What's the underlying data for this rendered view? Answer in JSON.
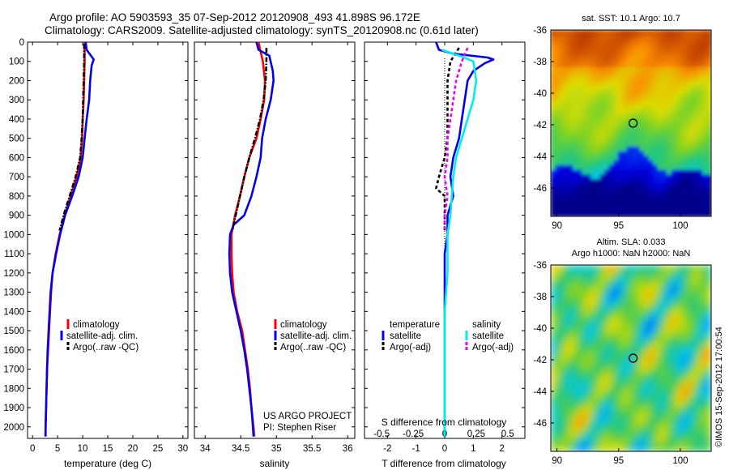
{
  "figure": {
    "title_line1": "Argo profile: AO 5903593_35 07-Sep-2012 20120908_493 41.898S 96.172E",
    "title_line2": "Climatology: CARS2009. Satellite-adjusted climatology: synTS_20120908.nc (0.61d later)",
    "project_line1": "US ARGO PROJECT",
    "project_line2": "PI: Stephen Riser",
    "credit": "©IMOS 15-Sep-2012 17:00:54"
  },
  "colors": {
    "climatology": "#ff0000",
    "satellite": "#0000ee",
    "argo": "#000000",
    "salinity_satellite": "#00eeee",
    "salinity_argo": "#ee00ee"
  },
  "chart_data": [
    {
      "type": "line",
      "panel": "temperature",
      "xlabel": "temperature (deg C)",
      "ylabel": "",
      "xlim": [
        -1,
        31
      ],
      "ylim": [
        2060,
        0
      ],
      "xticks": [
        "0",
        "5",
        "10",
        "15",
        "20",
        "25",
        "30"
      ],
      "yticks": [
        "0",
        "100",
        "200",
        "300",
        "400",
        "500",
        "600",
        "700",
        "800",
        "900",
        "1000",
        "1100",
        "1200",
        "1300",
        "1400",
        "1500",
        "1600",
        "1700",
        "1800",
        "1900",
        "2000"
      ],
      "legend": [
        "climatology",
        "satellite-adj. clim.",
        "Argo(..raw -QC)"
      ],
      "series": [
        {
          "name": "climatology",
          "color_key": "climatology",
          "dash": "solid",
          "points": [
            [
              10.4,
              0
            ],
            [
              10.4,
              50
            ],
            [
              10.4,
              100
            ],
            [
              10.3,
              200
            ],
            [
              10.2,
              300
            ],
            [
              10.0,
              400
            ],
            [
              9.9,
              500
            ],
            [
              9.6,
              600
            ],
            [
              8.8,
              700
            ],
            [
              7.6,
              800
            ],
            [
              6.4,
              900
            ],
            [
              5.4,
              1000
            ],
            [
              4.6,
              1100
            ],
            [
              4.0,
              1200
            ],
            [
              3.7,
              1300
            ],
            [
              3.5,
              1400
            ],
            [
              3.3,
              1500
            ],
            [
              3.1,
              1600
            ],
            [
              2.9,
              1700
            ],
            [
              2.8,
              1800
            ],
            [
              2.7,
              1900
            ],
            [
              2.6,
              2000
            ],
            [
              2.55,
              2050
            ]
          ]
        },
        {
          "name": "satellite-adj. clim.",
          "color_key": "satellite",
          "dash": "solid",
          "points": [
            [
              10.6,
              0
            ],
            [
              10.8,
              40
            ],
            [
              12.2,
              90
            ],
            [
              11.8,
              120
            ],
            [
              11.5,
              200
            ],
            [
              11.3,
              300
            ],
            [
              10.8,
              400
            ],
            [
              10.4,
              500
            ],
            [
              10.0,
              600
            ],
            [
              9.2,
              700
            ],
            [
              7.9,
              800
            ],
            [
              6.5,
              900
            ],
            [
              5.5,
              1000
            ],
            [
              4.7,
              1100
            ],
            [
              4.0,
              1200
            ],
            [
              3.6,
              1300
            ],
            [
              3.4,
              1400
            ],
            [
              3.2,
              1500
            ],
            [
              3.0,
              1600
            ],
            [
              2.9,
              1700
            ],
            [
              2.8,
              1800
            ],
            [
              2.7,
              1900
            ],
            [
              2.6,
              2000
            ],
            [
              2.6,
              2050
            ]
          ]
        },
        {
          "name": "Argo(..raw -QC)",
          "color_key": "argo",
          "dash": "dashdot",
          "points": [
            [
              10.3,
              10
            ],
            [
              10.3,
              100
            ],
            [
              10.2,
              200
            ],
            [
              10.1,
              300
            ],
            [
              10.0,
              400
            ],
            [
              9.8,
              500
            ],
            [
              9.5,
              600
            ],
            [
              8.6,
              700
            ],
            [
              7.4,
              800
            ],
            [
              6.2,
              900
            ],
            [
              5.4,
              980
            ]
          ]
        }
      ]
    },
    {
      "type": "line",
      "panel": "salinity",
      "xlabel": "salinity",
      "ylabel": "",
      "xlim": [
        33.85,
        36.1
      ],
      "ylim": [
        2060,
        0
      ],
      "xticks": [
        "34",
        "34.5",
        "35",
        "35.5",
        "36"
      ],
      "legend": [
        "climatology",
        "satellite-adj. clim.",
        "Argo(..raw -QC)"
      ],
      "series": [
        {
          "name": "climatology",
          "color_key": "climatology",
          "dash": "solid",
          "points": [
            [
              34.75,
              0
            ],
            [
              34.78,
              50
            ],
            [
              34.81,
              100
            ],
            [
              34.84,
              200
            ],
            [
              34.83,
              300
            ],
            [
              34.78,
              400
            ],
            [
              34.72,
              500
            ],
            [
              34.62,
              600
            ],
            [
              34.55,
              700
            ],
            [
              34.49,
              800
            ],
            [
              34.42,
              900
            ],
            [
              34.37,
              1000
            ],
            [
              34.37,
              1100
            ],
            [
              34.38,
              1200
            ],
            [
              34.4,
              1300
            ],
            [
              34.45,
              1400
            ],
            [
              34.52,
              1500
            ],
            [
              34.56,
              1600
            ],
            [
              34.6,
              1700
            ],
            [
              34.63,
              1800
            ],
            [
              34.65,
              1900
            ],
            [
              34.68,
              2000
            ],
            [
              34.69,
              2050
            ]
          ]
        },
        {
          "name": "satellite-adj. clim.",
          "color_key": "satellite",
          "dash": "solid",
          "points": [
            [
              34.72,
              0
            ],
            [
              34.75,
              40
            ],
            [
              34.9,
              70
            ],
            [
              34.95,
              150
            ],
            [
              34.96,
              200
            ],
            [
              34.92,
              300
            ],
            [
              34.85,
              400
            ],
            [
              34.8,
              500
            ],
            [
              34.78,
              600
            ],
            [
              34.72,
              700
            ],
            [
              34.65,
              800
            ],
            [
              34.55,
              900
            ],
            [
              34.4,
              950
            ],
            [
              34.35,
              1000
            ],
            [
              34.34,
              1100
            ],
            [
              34.35,
              1200
            ],
            [
              34.38,
              1300
            ],
            [
              34.44,
              1400
            ],
            [
              34.5,
              1500
            ],
            [
              34.55,
              1600
            ],
            [
              34.59,
              1700
            ],
            [
              34.62,
              1800
            ],
            [
              34.65,
              1900
            ],
            [
              34.67,
              2000
            ],
            [
              34.68,
              2050
            ]
          ]
        },
        {
          "name": "Argo(..raw -QC)",
          "color_key": "argo",
          "dash": "dashdot",
          "points": [
            [
              34.86,
              30
            ],
            [
              34.86,
              100
            ],
            [
              34.85,
              200
            ],
            [
              34.82,
              300
            ],
            [
              34.77,
              400
            ],
            [
              34.7,
              500
            ],
            [
              34.62,
              600
            ],
            [
              34.55,
              700
            ],
            [
              34.49,
              800
            ],
            [
              34.43,
              900
            ],
            [
              34.39,
              970
            ]
          ]
        }
      ]
    },
    {
      "type": "line",
      "panel": "difference",
      "xlabel": "T difference from climatology",
      "xlabel_top": "S difference from climatology",
      "xlim": [
        -2.8,
        2.8
      ],
      "ylim": [
        2060,
        0
      ],
      "xticks": [
        "-2",
        "-1",
        "0",
        "1",
        "2"
      ],
      "xticks_top": [
        "-0.5",
        "-0.25",
        "0",
        "0.25",
        "0.5"
      ],
      "legend_groups": [
        {
          "heading": "temperature",
          "items": [
            "satellite",
            "Argo(-adj)"
          ]
        },
        {
          "heading": "salinity",
          "items": [
            "satellite",
            "Argo(-adj)"
          ]
        }
      ],
      "series": [
        {
          "name": "temperature satellite",
          "color_key": "satellite",
          "dash": "solid",
          "points": [
            [
              -0.3,
              0
            ],
            [
              -0.2,
              40
            ],
            [
              0.3,
              60
            ],
            [
              1.5,
              80
            ],
            [
              1.7,
              90
            ],
            [
              1.4,
              110
            ],
            [
              1.0,
              150
            ],
            [
              0.8,
              200
            ],
            [
              0.7,
              300
            ],
            [
              0.6,
              400
            ],
            [
              0.5,
              500
            ],
            [
              0.3,
              600
            ],
            [
              0.2,
              700
            ],
            [
              0.3,
              800
            ],
            [
              0.1,
              900
            ],
            [
              0.1,
              1000
            ],
            [
              0.0,
              1100
            ],
            [
              0.0,
              1200
            ],
            [
              0.0,
              1400
            ],
            [
              0.0,
              1600
            ],
            [
              0.0,
              1800
            ],
            [
              0.0,
              2000
            ],
            [
              0.0,
              2050
            ]
          ]
        },
        {
          "name": "temperature Argo(-adj)",
          "color_key": "argo",
          "dash": "dashed",
          "points": [
            [
              0.5,
              30
            ],
            [
              0.2,
              100
            ],
            [
              0.1,
              200
            ],
            [
              0.1,
              300
            ],
            [
              0.1,
              400
            ],
            [
              0.1,
              500
            ],
            [
              0.0,
              600
            ],
            [
              -0.2,
              700
            ],
            [
              -0.3,
              760
            ],
            [
              0.0,
              800
            ],
            [
              0.0,
              900
            ],
            [
              0.0,
              980
            ]
          ]
        },
        {
          "name": "salinity satellite",
          "color_key": "salinity_satellite",
          "dash": "solid",
          "points": [
            [
              -0.1,
              40
            ],
            [
              0.5,
              70
            ],
            [
              1.0,
              100
            ],
            [
              1.1,
              200
            ],
            [
              1.0,
              300
            ],
            [
              0.8,
              400
            ],
            [
              0.6,
              500
            ],
            [
              0.4,
              600
            ],
            [
              0.3,
              700
            ],
            [
              0.25,
              800
            ],
            [
              0.2,
              900
            ],
            [
              0.1,
              1000
            ],
            [
              0.1,
              1200
            ],
            [
              0.0,
              1400
            ],
            [
              0.0,
              1600
            ],
            [
              0.0,
              1800
            ],
            [
              0.0,
              2000
            ],
            [
              0.0,
              2050
            ]
          ]
        },
        {
          "name": "salinity Argo(-adj)",
          "color_key": "salinity_argo",
          "dash": "dashed",
          "points": [
            [
              0.8,
              30
            ],
            [
              0.6,
              100
            ],
            [
              0.4,
              200
            ],
            [
              0.3,
              300
            ],
            [
              0.2,
              400
            ],
            [
              0.1,
              500
            ],
            [
              0.1,
              600
            ],
            [
              0.0,
              700
            ],
            [
              0.1,
              800
            ],
            [
              0.0,
              900
            ],
            [
              0.0,
              980
            ]
          ]
        }
      ]
    },
    {
      "type": "heatmap",
      "panel": "sst_map",
      "title": "sat. SST: 10.1  Argo: 10.7",
      "xlim": [
        89.5,
        102.5
      ],
      "ylim": [
        -47.8,
        -36
      ],
      "xticks": [
        "90",
        "95",
        "100"
      ],
      "yticks": [
        "-36",
        "-38",
        "-40",
        "-42",
        "-44",
        "-46"
      ],
      "marker": {
        "lon": 96.17,
        "lat": -41.9
      }
    },
    {
      "type": "heatmap",
      "panel": "sla_map",
      "title_line1": "Altim. SLA: 0.033",
      "title_line2": "Argo h1000: NaN h2000: NaN",
      "xlim": [
        89.5,
        102.5
      ],
      "ylim": [
        -47.8,
        -36
      ],
      "xticks": [
        "90",
        "95",
        "100"
      ],
      "yticks": [
        "-36",
        "-38",
        "-40",
        "-42",
        "-44",
        "-46"
      ],
      "marker": {
        "lon": 96.17,
        "lat": -41.9
      }
    }
  ]
}
